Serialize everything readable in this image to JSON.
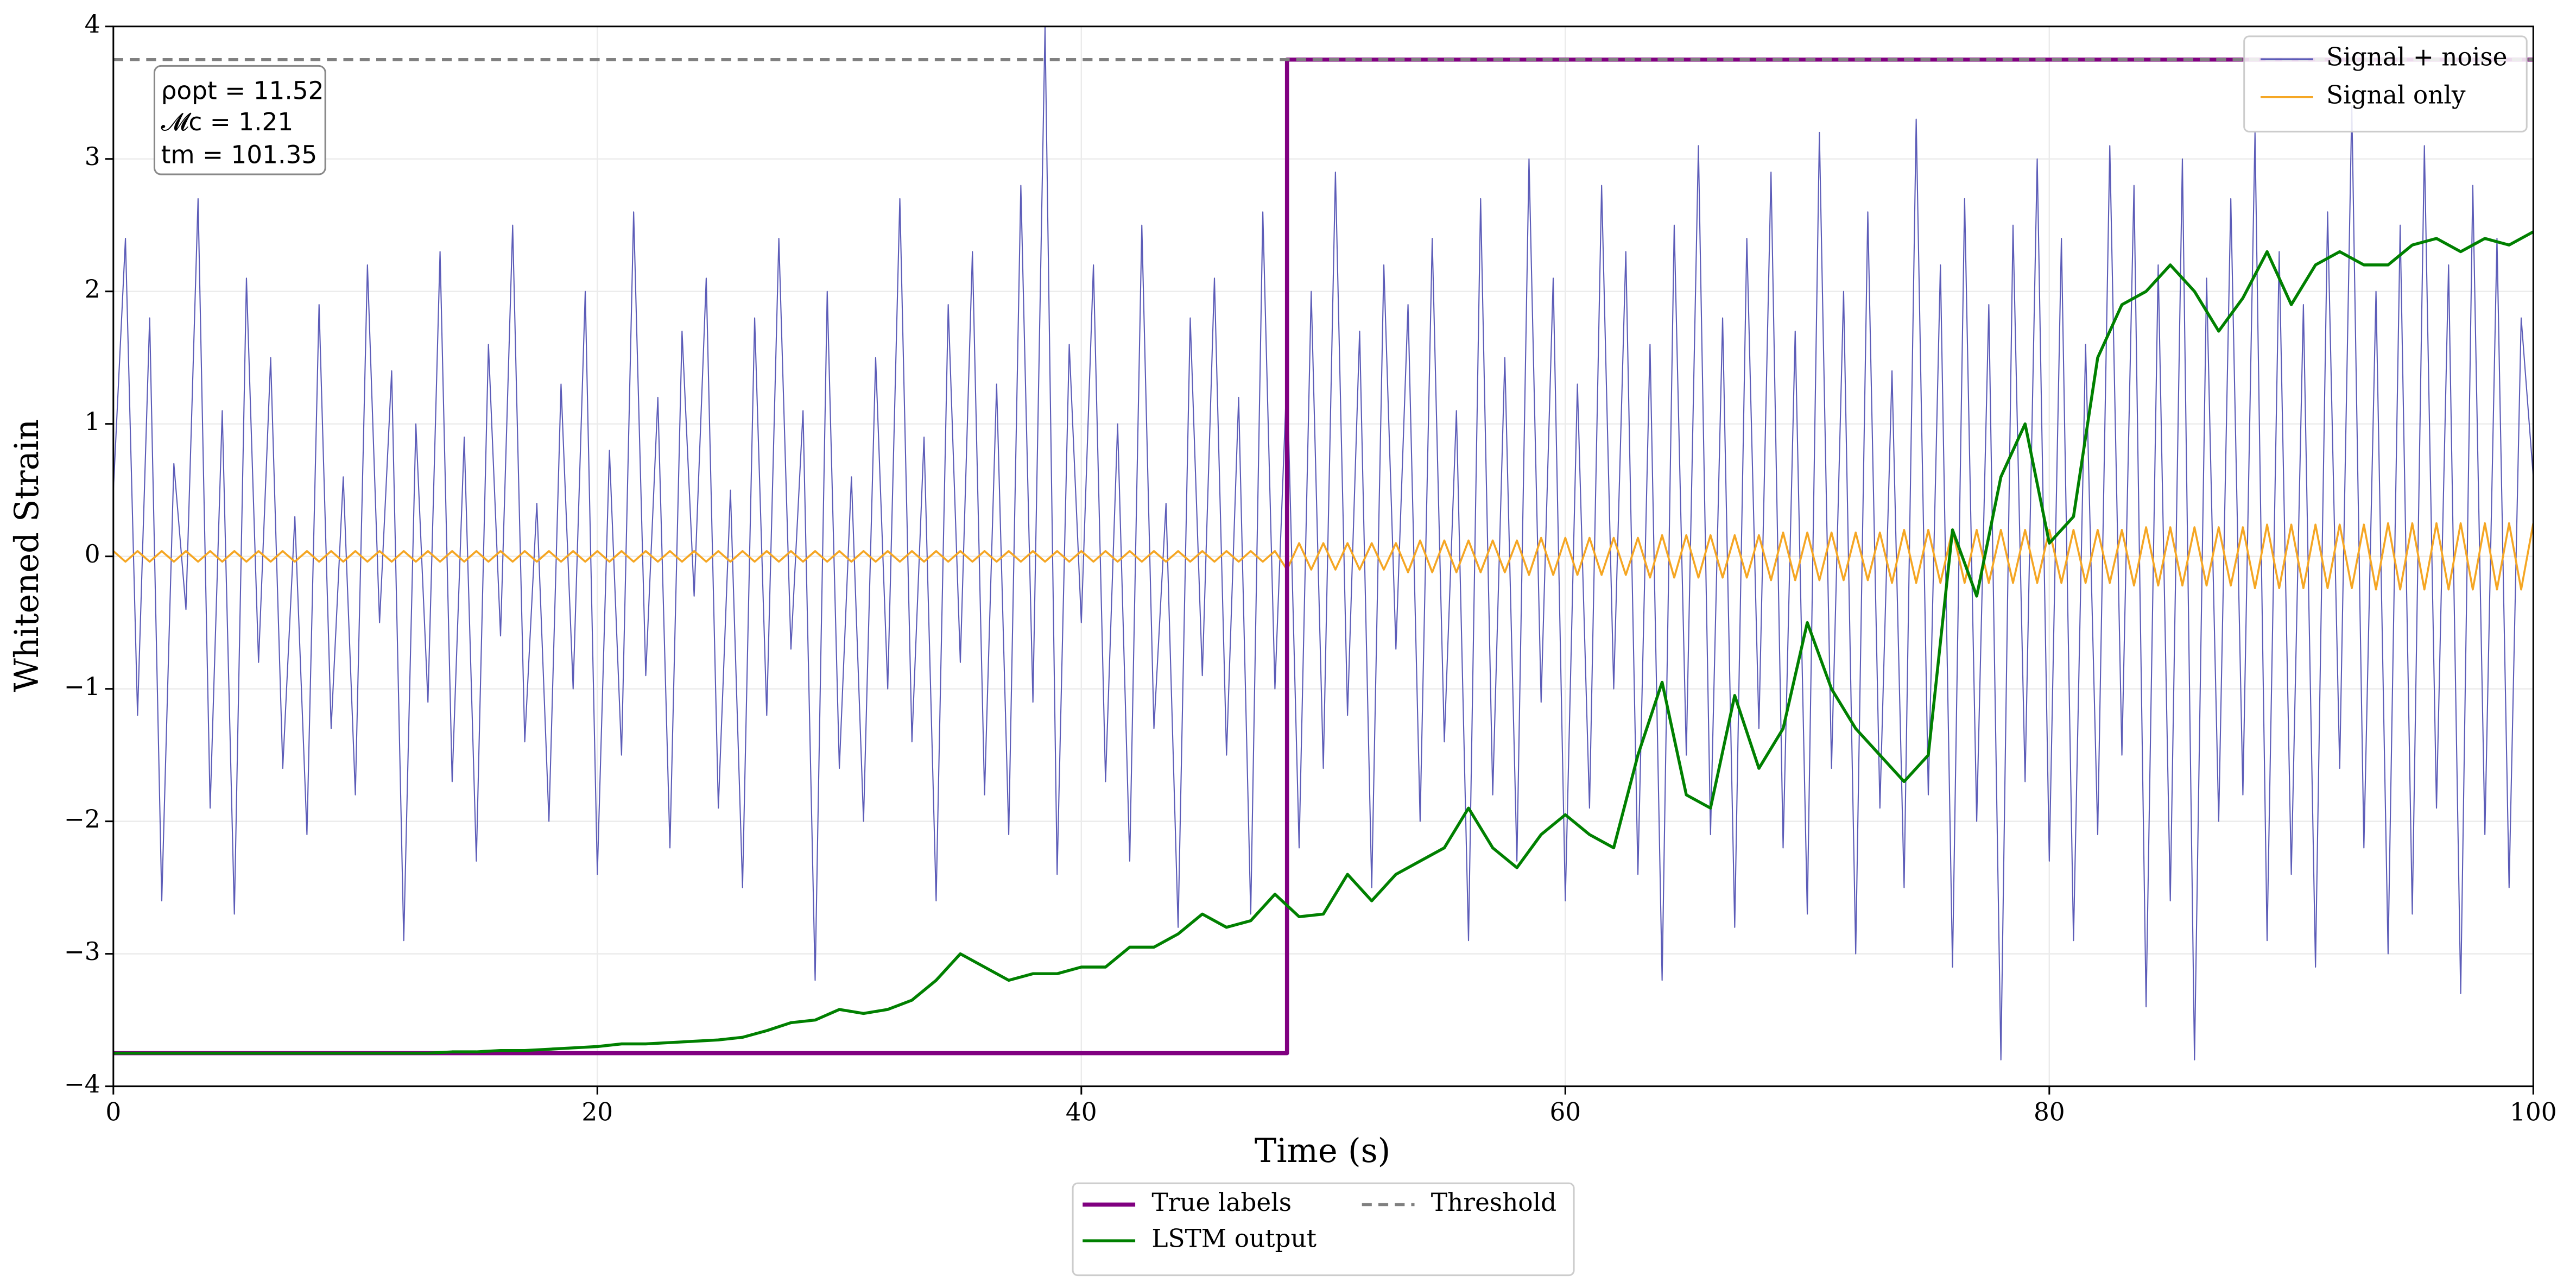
{
  "chart_data": {
    "type": "line",
    "xlabel": "Time (s)",
    "ylabel": "Whitened Strain",
    "annotation": [
      "ρopt = 11.52",
      "𝓜c = 1.21",
      "tm = 101.35"
    ],
    "xlim": [
      0,
      100
    ],
    "xticks": [
      0,
      20,
      40,
      60,
      80,
      100
    ],
    "ylim": [
      -4,
      4
    ],
    "yticks": [
      {
        "value": -4,
        "label": "−4"
      },
      {
        "value": -3,
        "label": "−3"
      },
      {
        "value": -2,
        "label": "−2"
      },
      {
        "value": -1,
        "label": "−1"
      },
      0,
      1,
      2,
      3,
      4
    ],
    "grid": true,
    "x": [
      0,
      0.5,
      1,
      1.5,
      2,
      2.5,
      3,
      3.5,
      4,
      4.5,
      5,
      5.5,
      6,
      6.5,
      7,
      7.5,
      8,
      8.5,
      9,
      9.5,
      10,
      10.5,
      11,
      11.5,
      12,
      12.5,
      13,
      13.5,
      14,
      14.5,
      15,
      15.5,
      16,
      16.5,
      17,
      17.5,
      18,
      18.5,
      19,
      19.5,
      20,
      20.5,
      21,
      21.5,
      22,
      22.5,
      23,
      23.5,
      24,
      24.5,
      25,
      25.5,
      26,
      26.5,
      27,
      27.5,
      28,
      28.5,
      29,
      29.5,
      30,
      30.5,
      31,
      31.5,
      32,
      32.5,
      33,
      33.5,
      34,
      34.5,
      35,
      35.5,
      36,
      36.5,
      37,
      37.5,
      38,
      38.5,
      39,
      39.5,
      40,
      40.5,
      41,
      41.5,
      42,
      42.5,
      43,
      43.5,
      44,
      44.5,
      45,
      45.5,
      46,
      46.5,
      47,
      47.5,
      48,
      48.5,
      49,
      49.5,
      50,
      50.5,
      51,
      51.5,
      52,
      52.5,
      53,
      53.5,
      54,
      54.5,
      55,
      55.5,
      56,
      56.5,
      57,
      57.5,
      58,
      58.5,
      59,
      59.5,
      60,
      60.5,
      61,
      61.5,
      62,
      62.5,
      63,
      63.5,
      64,
      64.5,
      65,
      65.5,
      66,
      66.5,
      67,
      67.5,
      68,
      68.5,
      69,
      69.5,
      70,
      70.5,
      71,
      71.5,
      72,
      72.5,
      73,
      73.5,
      74,
      74.5,
      75,
      75.5,
      76,
      76.5,
      77,
      77.5,
      78,
      78.5,
      79,
      79.5,
      80,
      80.5,
      81,
      81.5,
      82,
      82.5,
      83,
      83.5,
      84,
      84.5,
      85,
      85.5,
      86,
      86.5,
      87,
      87.5,
      88,
      88.5,
      89,
      89.5,
      90,
      90.5,
      91,
      91.5,
      92,
      92.5,
      93,
      93.5,
      94,
      94.5,
      95,
      95.5,
      96,
      96.5,
      97,
      97.5,
      98,
      98.5,
      99,
      99.5,
      100
    ],
    "series": [
      {
        "name": "Signal + noise",
        "color": "#5c5cb8",
        "width": 0.7,
        "legend": "upper right",
        "values": [
          0.5,
          2.4,
          -1.2,
          1.8,
          -2.6,
          0.7,
          -0.4,
          2.7,
          -1.9,
          1.1,
          -2.7,
          2.1,
          -0.8,
          1.5,
          -1.6,
          0.3,
          -2.1,
          1.9,
          -1.3,
          0.6,
          -1.8,
          2.2,
          -0.5,
          1.4,
          -2.9,
          1.0,
          -1.1,
          2.3,
          -1.7,
          0.9,
          -2.3,
          1.6,
          -0.6,
          2.5,
          -1.4,
          0.4,
          -2.0,
          1.3,
          -1.0,
          2.0,
          -2.4,
          0.8,
          -1.5,
          2.6,
          -0.9,
          1.2,
          -2.2,
          1.7,
          -0.3,
          2.1,
          -1.9,
          0.5,
          -2.5,
          1.8,
          -1.2,
          2.4,
          -0.7,
          1.1,
          -3.2,
          2.0,
          -1.6,
          0.6,
          -2.0,
          1.5,
          -1.0,
          2.7,
          -1.4,
          0.9,
          -2.6,
          1.9,
          -0.8,
          2.3,
          -1.8,
          1.3,
          -2.1,
          2.8,
          -1.1,
          4.0,
          -2.4,
          1.6,
          -0.5,
          2.2,
          -1.7,
          1.0,
          -2.3,
          2.5,
          -1.3,
          0.4,
          -2.8,
          1.8,
          -0.9,
          2.1,
          -1.5,
          1.2,
          -2.7,
          2.6,
          -1.0,
          1.4,
          -2.2,
          2.0,
          -1.6,
          2.9,
          -1.2,
          1.7,
          -2.5,
          2.2,
          -0.7,
          1.9,
          -2.0,
          2.4,
          -1.4,
          1.1,
          -2.9,
          2.7,
          -1.8,
          1.5,
          -2.3,
          3.0,
          -1.1,
          2.1,
          -2.6,
          1.3,
          -1.9,
          2.8,
          -1.0,
          2.3,
          -2.4,
          1.6,
          -3.2,
          2.5,
          -1.5,
          3.1,
          -2.1,
          1.8,
          -2.8,
          2.4,
          -1.3,
          2.9,
          -2.2,
          1.7,
          -2.7,
          3.2,
          -1.6,
          2.0,
          -3.0,
          2.6,
          -1.9,
          1.4,
          -2.5,
          3.3,
          -1.8,
          2.2,
          -3.1,
          2.7,
          -2.0,
          1.9,
          -3.8,
          2.5,
          -1.7,
          3.0,
          -2.3,
          2.4,
          -2.9,
          1.6,
          -2.1,
          3.1,
          -1.5,
          2.8,
          -3.4,
          2.2,
          -2.6,
          3.0,
          -3.8,
          2.1,
          -2.0,
          2.7,
          -1.8,
          3.2,
          -2.9,
          2.3,
          -2.4,
          1.9,
          -3.1,
          2.6,
          -1.6,
          3.4,
          -2.2,
          2.0,
          -3.0,
          2.5,
          -2.7,
          3.1,
          -1.9,
          2.2,
          -3.3,
          2.8,
          -2.1,
          2.4,
          -2.5,
          1.8,
          0.6
        ]
      },
      {
        "name": "Signal only",
        "color": "#f5a623",
        "width": 1.2,
        "legend": "upper right",
        "values": [
          0.04,
          -0.04,
          0.04,
          -0.04,
          0.04,
          -0.04,
          0.04,
          -0.04,
          0.04,
          -0.04,
          0.04,
          -0.04,
          0.04,
          -0.04,
          0.04,
          -0.04,
          0.04,
          -0.04,
          0.04,
          -0.04,
          0.04,
          -0.04,
          0.04,
          -0.04,
          0.04,
          -0.04,
          0.04,
          -0.04,
          0.04,
          -0.04,
          0.04,
          -0.04,
          0.04,
          -0.04,
          0.04,
          -0.04,
          0.04,
          -0.04,
          0.04,
          -0.04,
          0.04,
          -0.04,
          0.04,
          -0.04,
          0.04,
          -0.04,
          0.04,
          -0.04,
          0.04,
          -0.04,
          0.04,
          -0.04,
          0.04,
          -0.04,
          0.04,
          -0.04,
          0.04,
          -0.04,
          0.04,
          -0.04,
          0.04,
          -0.04,
          0.04,
          -0.04,
          0.04,
          -0.04,
          0.04,
          -0.04,
          0.04,
          -0.04,
          0.04,
          -0.04,
          0.04,
          -0.04,
          0.04,
          -0.04,
          0.04,
          -0.04,
          0.04,
          -0.04,
          0.04,
          -0.04,
          0.04,
          -0.04,
          0.04,
          -0.04,
          0.04,
          -0.04,
          0.04,
          -0.04,
          0.04,
          -0.04,
          0.04,
          -0.04,
          0.04,
          -0.04,
          0.04,
          -0.1,
          0.1,
          -0.1,
          0.1,
          -0.1,
          0.1,
          -0.1,
          0.1,
          -0.1,
          0.1,
          -0.12,
          0.12,
          -0.12,
          0.12,
          -0.12,
          0.12,
          -0.12,
          0.12,
          -0.12,
          0.12,
          -0.14,
          0.14,
          -0.14,
          0.14,
          -0.14,
          0.14,
          -0.14,
          0.14,
          -0.14,
          0.14,
          -0.16,
          0.16,
          -0.16,
          0.16,
          -0.16,
          0.16,
          -0.16,
          0.16,
          -0.16,
          0.16,
          -0.18,
          0.18,
          -0.18,
          0.18,
          -0.18,
          0.18,
          -0.18,
          0.18,
          -0.18,
          0.18,
          -0.2,
          0.2,
          -0.2,
          0.2,
          -0.2,
          0.2,
          -0.2,
          0.2,
          -0.2,
          0.2,
          -0.2,
          0.2,
          -0.2,
          0.2,
          -0.2,
          0.2,
          -0.2,
          0.2,
          -0.2,
          0.2,
          -0.22,
          0.22,
          -0.22,
          0.22,
          -0.22,
          0.22,
          -0.22,
          0.22,
          -0.22,
          0.22,
          -0.24,
          0.24,
          -0.24,
          0.24,
          -0.24,
          0.24,
          -0.24,
          0.24,
          -0.24,
          0.24,
          -0.25,
          0.25,
          -0.25,
          0.25,
          -0.25,
          0.25,
          -0.25,
          0.25,
          -0.25,
          0.25,
          -0.25,
          0.25,
          -0.25,
          0.25
        ]
      },
      {
        "name": "True labels",
        "color": "#800080",
        "width": 2.5,
        "legend": "lower center",
        "x": [
          0,
          48.5,
          48.5,
          100
        ],
        "values": [
          -3.75,
          -3.75,
          3.75,
          3.75
        ]
      },
      {
        "name": "LSTM output",
        "color": "#008000",
        "width": 1.8,
        "legend": "lower center",
        "x": [
          0,
          1,
          2,
          3,
          4,
          5,
          6,
          7,
          8,
          9,
          10,
          11,
          12,
          13,
          14,
          15,
          16,
          17,
          18,
          19,
          20,
          21,
          22,
          23,
          24,
          25,
          26,
          27,
          28,
          29,
          30,
          31,
          32,
          33,
          34,
          35,
          36,
          37,
          38,
          39,
          40,
          41,
          42,
          43,
          44,
          45,
          46,
          47,
          48,
          49,
          50,
          51,
          52,
          53,
          54,
          55,
          56,
          57,
          58,
          59,
          60,
          61,
          62,
          63,
          64,
          65,
          66,
          67,
          68,
          69,
          70,
          71,
          72,
          73,
          74,
          75,
          76,
          77,
          78,
          79,
          80,
          81,
          82,
          83,
          84,
          85,
          86,
          87,
          88,
          89,
          90,
          91,
          92,
          93,
          94,
          95,
          96,
          97,
          98,
          99,
          100
        ],
        "values": [
          -3.75,
          -3.75,
          -3.75,
          -3.75,
          -3.75,
          -3.75,
          -3.75,
          -3.75,
          -3.75,
          -3.75,
          -3.75,
          -3.75,
          -3.75,
          -3.75,
          -3.74,
          -3.74,
          -3.73,
          -3.73,
          -3.72,
          -3.71,
          -3.7,
          -3.68,
          -3.68,
          -3.67,
          -3.66,
          -3.65,
          -3.63,
          -3.58,
          -3.52,
          -3.5,
          -3.42,
          -3.45,
          -3.42,
          -3.35,
          -3.2,
          -3.0,
          -3.1,
          -3.2,
          -3.15,
          -3.15,
          -3.1,
          -3.1,
          -2.95,
          -2.95,
          -2.85,
          -2.7,
          -2.8,
          -2.75,
          -2.55,
          -2.72,
          -2.7,
          -2.4,
          -2.6,
          -2.4,
          -2.3,
          -2.2,
          -1.9,
          -2.2,
          -2.35,
          -2.1,
          -1.95,
          -2.1,
          -2.2,
          -1.5,
          -0.95,
          -1.8,
          -1.9,
          -1.05,
          -1.6,
          -1.3,
          -0.5,
          -1.0,
          -1.3,
          -1.5,
          -1.7,
          -1.5,
          0.2,
          -0.3,
          0.6,
          1.0,
          0.1,
          0.3,
          1.5,
          1.9,
          2.0,
          2.2,
          2.0,
          1.7,
          1.95,
          2.3,
          1.9,
          2.2,
          2.3,
          2.2,
          2.2,
          2.35,
          2.4,
          2.3,
          2.4,
          2.35,
          2.45
        ]
      },
      {
        "name": "Threshold",
        "color": "#808080",
        "width": 1.8,
        "dash": true,
        "legend": "lower center",
        "x": [
          0,
          100
        ],
        "values": [
          3.75,
          3.75
        ]
      }
    ]
  }
}
